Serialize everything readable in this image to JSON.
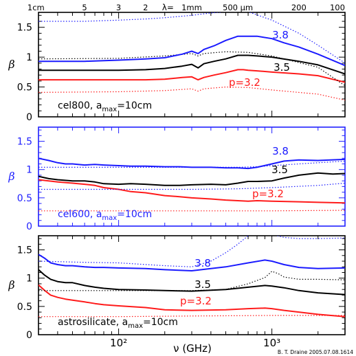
{
  "colors": {
    "red": "#ff1a1a",
    "black": "#000000",
    "blue": "#1a1aff",
    "frame_blue": "#2020ff"
  },
  "top_axis": {
    "label_prefix": "λ=",
    "ticks": [
      {
        "label": "1cm",
        "nu": 29.98
      },
      {
        "label": "5",
        "nu": 59.96
      },
      {
        "label": "3",
        "nu": 99.93
      },
      {
        "label": "2",
        "nu": 149.9
      },
      {
        "label": "1mm",
        "nu": 299.8
      },
      {
        "label": "500 μm",
        "nu": 599.6
      },
      {
        "label": "200",
        "nu": 1499
      },
      {
        "label": "100",
        "nu": 2998
      }
    ]
  },
  "x_axis": {
    "label": "ν (GHz)",
    "scale": "log",
    "range": [
      30,
      3000
    ],
    "major_ticks": [
      {
        "value": 100,
        "label": "10²"
      },
      {
        "value": 1000,
        "label": "10³"
      }
    ]
  },
  "credit": "B. T. Draine 2005.07.08.1614",
  "chart_data": [
    {
      "type": "line",
      "panel": "top",
      "ylabel": "β",
      "ylim": [
        0,
        1.75
      ],
      "yticks": [
        {
          "v": 0,
          "l": "0"
        },
        {
          "v": 0.5,
          "l": "0.5"
        },
        {
          "v": 1,
          "l": "1"
        },
        {
          "v": 1.5,
          "l": "1.5"
        }
      ],
      "annotation": {
        "prefix": "cel800, a",
        "sub": "max",
        "suffix": "=10cm"
      },
      "series": [
        {
          "name": "p=3.2",
          "color": "red",
          "style": "solid",
          "x": [
            30,
            60,
            100,
            150,
            200,
            260,
            300,
            330,
            360,
            420,
            500,
            600,
            650,
            700,
            800,
            1000,
            1500,
            2000,
            3000
          ],
          "y": [
            0.62,
            0.62,
            0.62,
            0.62,
            0.63,
            0.66,
            0.67,
            0.62,
            0.66,
            0.7,
            0.74,
            0.79,
            0.79,
            0.78,
            0.77,
            0.75,
            0.72,
            0.69,
            0.58
          ]
        },
        {
          "name": "",
          "color": "red",
          "style": "dotted",
          "x": [
            30,
            100,
            200,
            300,
            330,
            360,
            500,
            700,
            1000,
            2000,
            3000
          ],
          "y": [
            0.41,
            0.42,
            0.44,
            0.47,
            0.43,
            0.47,
            0.5,
            0.49,
            0.45,
            0.38,
            0.28
          ]
        },
        {
          "name": "3.5",
          "color": "black",
          "style": "solid",
          "x": [
            30,
            60,
            100,
            150,
            200,
            260,
            300,
            330,
            360,
            420,
            500,
            600,
            700,
            800,
            1000,
            1500,
            2000,
            3000
          ],
          "y": [
            0.78,
            0.78,
            0.78,
            0.79,
            0.81,
            0.85,
            0.88,
            0.82,
            0.89,
            0.93,
            0.97,
            1.03,
            1.03,
            1.02,
            1.0,
            0.93,
            0.87,
            0.72
          ]
        },
        {
          "name": "",
          "color": "black",
          "style": "dotted",
          "x": [
            30,
            100,
            200,
            300,
            330,
            360,
            500,
            700,
            1000,
            2000,
            3000
          ],
          "y": [
            0.97,
            0.98,
            1.02,
            1.06,
            1.02,
            1.06,
            1.09,
            1.08,
            1.02,
            0.83,
            0.52
          ]
        },
        {
          "name": "3.8",
          "color": "blue",
          "style": "solid",
          "x": [
            30,
            60,
            100,
            150,
            200,
            260,
            300,
            330,
            360,
            420,
            500,
            600,
            700,
            800,
            1000,
            1200,
            1500,
            2000,
            3000
          ],
          "y": [
            0.93,
            0.93,
            0.95,
            0.97,
            0.99,
            1.05,
            1.1,
            1.06,
            1.13,
            1.19,
            1.28,
            1.35,
            1.35,
            1.35,
            1.31,
            1.24,
            1.17,
            1.05,
            0.86
          ]
        },
        {
          "name": "",
          "color": "blue",
          "style": "dotted",
          "x": [
            30,
            60,
            100,
            150,
            200,
            300,
            400,
            500,
            700,
            1000,
            1500,
            2000,
            3000
          ],
          "y": [
            1.6,
            1.6,
            1.62,
            1.64,
            1.66,
            1.7,
            1.74,
            1.76,
            1.76,
            1.62,
            1.4,
            1.2,
            0.9
          ]
        }
      ]
    },
    {
      "type": "line",
      "panel": "middle",
      "ylabel": "β",
      "ylim": [
        0,
        1.75
      ],
      "yticks": [
        {
          "v": 0,
          "l": "0"
        },
        {
          "v": 0.5,
          "l": "0.5"
        },
        {
          "v": 1,
          "l": "1"
        },
        {
          "v": 1.5,
          "l": "1.5"
        }
      ],
      "annotation": {
        "prefix": "cel600, a",
        "sub": "max",
        "suffix": "=10cm"
      },
      "series": [
        {
          "name": "p=3.2",
          "color": "red",
          "style": "solid",
          "x": [
            30,
            35,
            40,
            50,
            60,
            70,
            80,
            100,
            120,
            150,
            200,
            250,
            300,
            400,
            500,
            600,
            700,
            800,
            1000,
            1500,
            2000,
            3000
          ],
          "y": [
            0.82,
            0.8,
            0.78,
            0.76,
            0.74,
            0.72,
            0.68,
            0.65,
            0.61,
            0.59,
            0.54,
            0.52,
            0.5,
            0.48,
            0.46,
            0.45,
            0.44,
            0.45,
            0.44,
            0.43,
            0.42,
            0.41
          ]
        },
        {
          "name": "",
          "color": "red",
          "style": "dotted",
          "x": [
            30,
            100,
            300,
            1000,
            3000
          ],
          "y": [
            0.27,
            0.27,
            0.27,
            0.27,
            0.28
          ]
        },
        {
          "name": "3.5",
          "color": "black",
          "style": "solid",
          "x": [
            30,
            35,
            40,
            50,
            60,
            70,
            80,
            100,
            120,
            150,
            200,
            250,
            300,
            400,
            500,
            600,
            700,
            800,
            1000,
            1200,
            1500,
            2000,
            2500,
            3000
          ],
          "y": [
            0.88,
            0.84,
            0.82,
            0.8,
            0.8,
            0.78,
            0.75,
            0.74,
            0.75,
            0.74,
            0.72,
            0.72,
            0.73,
            0.74,
            0.73,
            0.76,
            0.79,
            0.79,
            0.8,
            0.85,
            0.9,
            0.94,
            0.92,
            0.93
          ]
        },
        {
          "name": "",
          "color": "blue",
          "style": "dotted",
          "x": [
            30,
            100,
            300,
            600,
            1000,
            2000,
            3000
          ],
          "y": [
            0.65,
            0.65,
            0.65,
            0.66,
            0.68,
            0.72,
            0.76
          ]
        },
        {
          "name": "3.8",
          "color": "blue",
          "style": "solid",
          "x": [
            30,
            35,
            40,
            45,
            50,
            60,
            70,
            80,
            100,
            120,
            150,
            200,
            250,
            300,
            400,
            500,
            600,
            700,
            800,
            1000,
            1200,
            1500,
            2000,
            3000
          ],
          "y": [
            1.2,
            1.16,
            1.12,
            1.1,
            1.1,
            1.08,
            1.09,
            1.08,
            1.07,
            1.06,
            1.06,
            1.05,
            1.05,
            1.04,
            1.04,
            1.03,
            1.03,
            1.02,
            1.04,
            1.1,
            1.15,
            1.17,
            1.16,
            1.18
          ]
        },
        {
          "name": "",
          "color": "blue",
          "style": "dotted",
          "x": [
            30,
            100,
            300,
            600,
            800,
            1000,
            1500,
            2000,
            3000
          ],
          "y": [
            1.04,
            1.04,
            1.04,
            1.04,
            1.05,
            1.07,
            1.1,
            1.12,
            1.15
          ]
        }
      ]
    },
    {
      "type": "line",
      "panel": "bottom",
      "ylabel": "β",
      "ylim": [
        0,
        1.75
      ],
      "yticks": [
        {
          "v": 0,
          "l": "0"
        },
        {
          "v": 0.5,
          "l": "0.5"
        },
        {
          "v": 1,
          "l": "1"
        },
        {
          "v": 1.5,
          "l": "1.5"
        }
      ],
      "annotation": {
        "prefix": "astrosilicate, a",
        "sub": "max",
        "suffix": "=10cm"
      },
      "series": [
        {
          "name": "p=3.2",
          "color": "red",
          "style": "solid",
          "x": [
            30,
            33,
            36,
            40,
            45,
            50,
            60,
            70,
            80,
            100,
            150,
            200,
            300,
            500,
            700,
            900,
            1000,
            1200,
            1500,
            2000,
            3000
          ],
          "y": [
            0.88,
            0.78,
            0.7,
            0.66,
            0.63,
            0.61,
            0.58,
            0.55,
            0.53,
            0.51,
            0.48,
            0.44,
            0.43,
            0.44,
            0.46,
            0.47,
            0.46,
            0.43,
            0.4,
            0.36,
            0.32
          ]
        },
        {
          "name": "",
          "color": "red",
          "style": "dotted",
          "x": [
            30,
            100,
            300,
            1000,
            3000
          ],
          "y": [
            0.32,
            0.32,
            0.33,
            0.34,
            0.34
          ]
        },
        {
          "name": "3.5",
          "color": "black",
          "style": "solid",
          "x": [
            30,
            33,
            36,
            40,
            45,
            50,
            60,
            70,
            80,
            100,
            150,
            200,
            300,
            500,
            700,
            900,
            1000,
            1200,
            1500,
            2000,
            3000
          ],
          "y": [
            1.15,
            1.05,
            0.98,
            0.94,
            0.92,
            0.92,
            0.87,
            0.84,
            0.82,
            0.8,
            0.79,
            0.78,
            0.77,
            0.8,
            0.84,
            0.87,
            0.86,
            0.83,
            0.78,
            0.74,
            0.71
          ]
        },
        {
          "name": "",
          "color": "black",
          "style": "dotted",
          "x": [
            30,
            60,
            100,
            200,
            300,
            500,
            700,
            900,
            1000,
            1100,
            1200,
            1500,
            2000,
            3000
          ],
          "y": [
            0.78,
            0.78,
            0.78,
            0.78,
            0.78,
            0.8,
            0.9,
            1.01,
            1.12,
            1.08,
            1.02,
            0.98,
            0.98,
            0.97
          ]
        },
        {
          "name": "3.8",
          "color": "blue",
          "style": "solid",
          "x": [
            30,
            33,
            36,
            40,
            45,
            50,
            60,
            70,
            80,
            100,
            150,
            200,
            300,
            500,
            700,
            900,
            1000,
            1200,
            1500,
            2000,
            3000
          ],
          "y": [
            1.42,
            1.35,
            1.27,
            1.24,
            1.22,
            1.22,
            1.2,
            1.19,
            1.19,
            1.18,
            1.17,
            1.15,
            1.13,
            1.2,
            1.27,
            1.32,
            1.3,
            1.24,
            1.19,
            1.17,
            1.18
          ]
        },
        {
          "name": "",
          "color": "blue",
          "style": "dotted",
          "x": [
            30,
            60,
            100,
            200,
            300,
            400,
            500,
            600,
            700,
            800,
            1200,
            1500,
            2000,
            3000
          ],
          "y": [
            1.3,
            1.28,
            1.27,
            1.22,
            1.2,
            1.3,
            1.45,
            1.6,
            1.75,
            1.85,
            1.72,
            1.7,
            1.7,
            1.71
          ]
        }
      ]
    }
  ]
}
